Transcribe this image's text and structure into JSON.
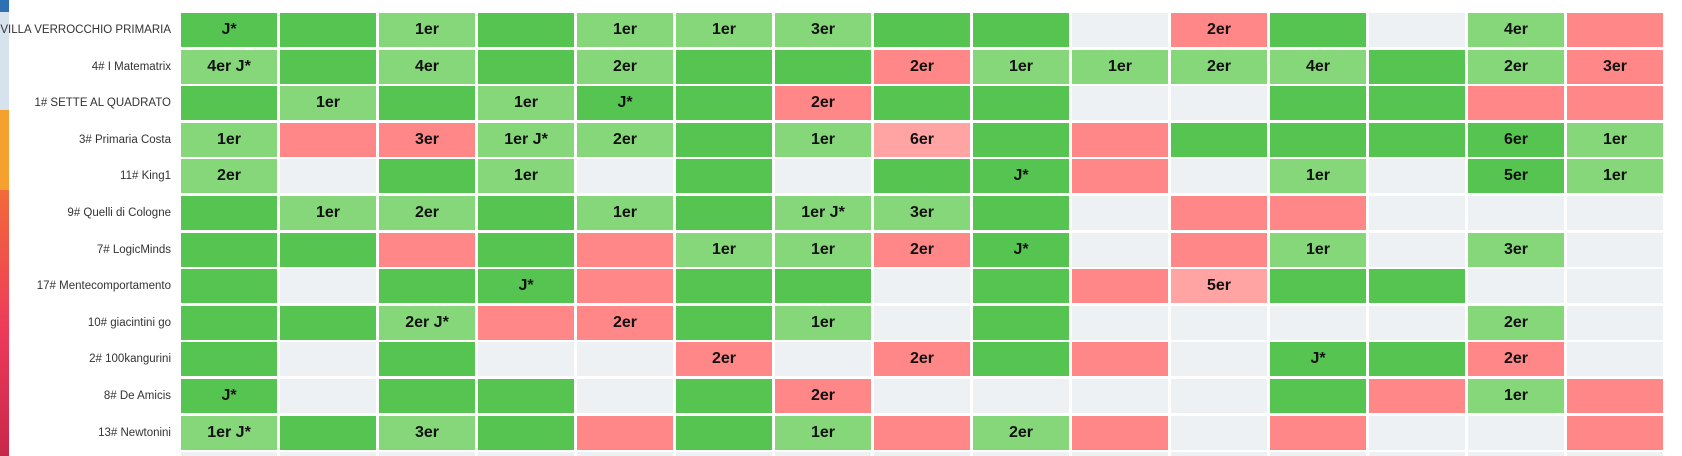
{
  "colors": {
    "D": "#56c451",
    "L": "#86d77a",
    "R": "#ff8787",
    "P": "#ffa3a3",
    "E": "#edf1f3"
  },
  "rows": [
    {
      "team": "VILLA VERROCCHIO PRIMARIA",
      "cells": [
        [
          "D",
          "J*"
        ],
        [
          "D",
          ""
        ],
        [
          "L",
          "1er"
        ],
        [
          "D",
          ""
        ],
        [
          "L",
          "1er"
        ],
        [
          "L",
          "1er"
        ],
        [
          "L",
          "3er"
        ],
        [
          "D",
          ""
        ],
        [
          "D",
          ""
        ],
        [
          "E",
          ""
        ],
        [
          "R",
          "2er"
        ],
        [
          "D",
          ""
        ],
        [
          "E",
          ""
        ],
        [
          "L",
          "4er"
        ],
        [
          "R",
          ""
        ]
      ]
    },
    {
      "team": "4# I Matematrix",
      "cells": [
        [
          "L",
          "4er J*"
        ],
        [
          "D",
          ""
        ],
        [
          "L",
          "4er"
        ],
        [
          "D",
          ""
        ],
        [
          "L",
          "2er"
        ],
        [
          "D",
          ""
        ],
        [
          "D",
          ""
        ],
        [
          "R",
          "2er"
        ],
        [
          "L",
          "1er"
        ],
        [
          "L",
          "1er"
        ],
        [
          "L",
          "2er"
        ],
        [
          "L",
          "4er"
        ],
        [
          "D",
          ""
        ],
        [
          "L",
          "2er"
        ],
        [
          "R",
          "3er"
        ]
      ]
    },
    {
      "team": "1# SETTE AL QUADRATO",
      "cells": [
        [
          "D",
          ""
        ],
        [
          "L",
          "1er"
        ],
        [
          "D",
          ""
        ],
        [
          "L",
          "1er"
        ],
        [
          "D",
          "J*"
        ],
        [
          "D",
          ""
        ],
        [
          "R",
          "2er"
        ],
        [
          "D",
          ""
        ],
        [
          "D",
          ""
        ],
        [
          "E",
          ""
        ],
        [
          "E",
          ""
        ],
        [
          "D",
          ""
        ],
        [
          "D",
          ""
        ],
        [
          "R",
          ""
        ],
        [
          "R",
          ""
        ]
      ]
    },
    {
      "team": "3# Primaria Costa",
      "cells": [
        [
          "L",
          "1er"
        ],
        [
          "R",
          ""
        ],
        [
          "R",
          "3er"
        ],
        [
          "L",
          "1er J*"
        ],
        [
          "L",
          "2er"
        ],
        [
          "D",
          ""
        ],
        [
          "L",
          "1er"
        ],
        [
          "P",
          "6er"
        ],
        [
          "D",
          ""
        ],
        [
          "R",
          ""
        ],
        [
          "D",
          ""
        ],
        [
          "D",
          ""
        ],
        [
          "D",
          ""
        ],
        [
          "D",
          "6er"
        ],
        [
          "L",
          "1er"
        ]
      ]
    },
    {
      "team": "11# King1",
      "cells": [
        [
          "L",
          "2er"
        ],
        [
          "E",
          ""
        ],
        [
          "D",
          ""
        ],
        [
          "L",
          "1er"
        ],
        [
          "E",
          ""
        ],
        [
          "D",
          ""
        ],
        [
          "E",
          ""
        ],
        [
          "D",
          ""
        ],
        [
          "D",
          "J*"
        ],
        [
          "R",
          ""
        ],
        [
          "E",
          ""
        ],
        [
          "L",
          "1er"
        ],
        [
          "E",
          ""
        ],
        [
          "D",
          "5er"
        ],
        [
          "L",
          "1er"
        ]
      ]
    },
    {
      "team": "9# Quelli di Cologne",
      "cells": [
        [
          "D",
          ""
        ],
        [
          "L",
          "1er"
        ],
        [
          "L",
          "2er"
        ],
        [
          "D",
          ""
        ],
        [
          "L",
          "1er"
        ],
        [
          "D",
          ""
        ],
        [
          "L",
          "1er J*"
        ],
        [
          "L",
          "3er"
        ],
        [
          "D",
          ""
        ],
        [
          "E",
          ""
        ],
        [
          "R",
          ""
        ],
        [
          "R",
          ""
        ],
        [
          "E",
          ""
        ],
        [
          "E",
          ""
        ],
        [
          "E",
          ""
        ]
      ]
    },
    {
      "team": "7# LogicMinds",
      "cells": [
        [
          "D",
          ""
        ],
        [
          "D",
          ""
        ],
        [
          "R",
          ""
        ],
        [
          "D",
          ""
        ],
        [
          "R",
          ""
        ],
        [
          "L",
          "1er"
        ],
        [
          "L",
          "1er"
        ],
        [
          "R",
          "2er"
        ],
        [
          "D",
          "J*"
        ],
        [
          "E",
          ""
        ],
        [
          "R",
          ""
        ],
        [
          "L",
          "1er"
        ],
        [
          "E",
          ""
        ],
        [
          "L",
          "3er"
        ],
        [
          "E",
          ""
        ]
      ]
    },
    {
      "team": "17# Mentecomportamento",
      "cells": [
        [
          "D",
          ""
        ],
        [
          "E",
          ""
        ],
        [
          "D",
          ""
        ],
        [
          "D",
          "J*"
        ],
        [
          "R",
          ""
        ],
        [
          "D",
          ""
        ],
        [
          "D",
          ""
        ],
        [
          "E",
          ""
        ],
        [
          "D",
          ""
        ],
        [
          "R",
          ""
        ],
        [
          "P",
          "5er"
        ],
        [
          "D",
          ""
        ],
        [
          "D",
          ""
        ],
        [
          "E",
          ""
        ],
        [
          "E",
          ""
        ]
      ]
    },
    {
      "team": "10# giacintini go",
      "cells": [
        [
          "D",
          ""
        ],
        [
          "D",
          ""
        ],
        [
          "L",
          "2er J*"
        ],
        [
          "R",
          ""
        ],
        [
          "R",
          "2er"
        ],
        [
          "D",
          ""
        ],
        [
          "L",
          "1er"
        ],
        [
          "E",
          ""
        ],
        [
          "D",
          ""
        ],
        [
          "E",
          ""
        ],
        [
          "E",
          ""
        ],
        [
          "E",
          ""
        ],
        [
          "E",
          ""
        ],
        [
          "L",
          "2er"
        ],
        [
          "E",
          ""
        ]
      ]
    },
    {
      "team": "2# 100kangurini",
      "cells": [
        [
          "D",
          ""
        ],
        [
          "E",
          ""
        ],
        [
          "D",
          ""
        ],
        [
          "E",
          ""
        ],
        [
          "E",
          ""
        ],
        [
          "R",
          "2er"
        ],
        [
          "E",
          ""
        ],
        [
          "R",
          "2er"
        ],
        [
          "D",
          ""
        ],
        [
          "R",
          ""
        ],
        [
          "E",
          ""
        ],
        [
          "D",
          "J*"
        ],
        [
          "D",
          ""
        ],
        [
          "R",
          "2er"
        ],
        [
          "E",
          ""
        ]
      ]
    },
    {
      "team": "8# De Amicis",
      "cells": [
        [
          "D",
          "J*"
        ],
        [
          "E",
          ""
        ],
        [
          "D",
          ""
        ],
        [
          "D",
          ""
        ],
        [
          "E",
          ""
        ],
        [
          "D",
          ""
        ],
        [
          "R",
          "2er"
        ],
        [
          "E",
          ""
        ],
        [
          "E",
          ""
        ],
        [
          "E",
          ""
        ],
        [
          "E",
          ""
        ],
        [
          "D",
          ""
        ],
        [
          "R",
          ""
        ],
        [
          "L",
          "1er"
        ],
        [
          "R",
          ""
        ]
      ]
    },
    {
      "team": "13# Newtonini",
      "cells": [
        [
          "L",
          "1er J*"
        ],
        [
          "D",
          ""
        ],
        [
          "L",
          "3er"
        ],
        [
          "D",
          ""
        ],
        [
          "R",
          ""
        ],
        [
          "D",
          ""
        ],
        [
          "L",
          "1er"
        ],
        [
          "R",
          ""
        ],
        [
          "L",
          "2er"
        ],
        [
          "R",
          ""
        ],
        [
          "E",
          ""
        ],
        [
          "R",
          ""
        ],
        [
          "E",
          ""
        ],
        [
          "E",
          ""
        ],
        [
          "R",
          ""
        ]
      ]
    }
  ]
}
